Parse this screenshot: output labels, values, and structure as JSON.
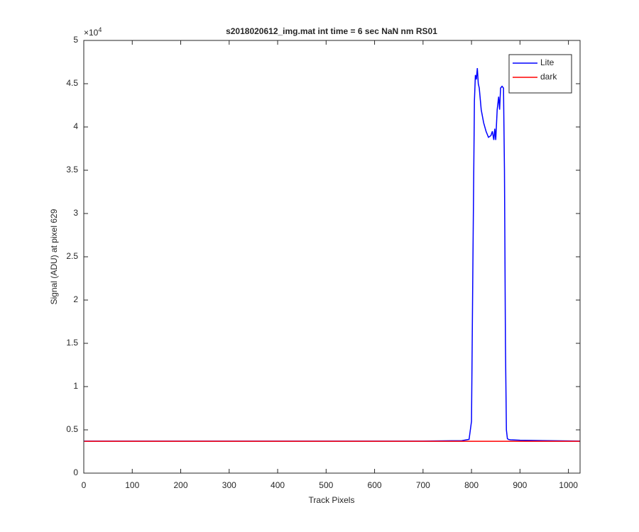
{
  "chart_data": {
    "type": "line",
    "title": "s2018020612_img.mat int time = 6 sec  NaN nm RS01",
    "x_label": "Track Pixels",
    "y_label": "Signal (ADU) at pixel 629",
    "y_multiplier": {
      "base": "×10",
      "exponent": "4"
    },
    "x": [
      1,
      100,
      200,
      300,
      400,
      500,
      600,
      700,
      780,
      795,
      800,
      803,
      806,
      808,
      810,
      812,
      814,
      816,
      820,
      825,
      830,
      835,
      840,
      843,
      846,
      848,
      850,
      853,
      856,
      858,
      860,
      863,
      866,
      868,
      870,
      872,
      874,
      876,
      880,
      900,
      1000,
      1024
    ],
    "series": [
      {
        "name": "Lite",
        "color": "#0000ff",
        "values": [
          0.37,
          0.37,
          0.37,
          0.37,
          0.37,
          0.37,
          0.37,
          0.37,
          0.375,
          0.39,
          0.6,
          2.5,
          4.3,
          4.6,
          4.55,
          4.68,
          4.5,
          4.45,
          4.2,
          4.05,
          3.95,
          3.88,
          3.9,
          3.95,
          3.85,
          3.98,
          3.85,
          4.2,
          4.35,
          4.2,
          4.45,
          4.47,
          4.45,
          3.5,
          1.5,
          0.5,
          0.4,
          0.39,
          0.385,
          0.38,
          0.372,
          0.37
        ]
      },
      {
        "name": "dark",
        "color": "#ff0000",
        "values": [
          0.368,
          0.368,
          0.368,
          0.368,
          0.368,
          0.368,
          0.368,
          0.368,
          0.368,
          0.368,
          0.368,
          0.368,
          0.368,
          0.368,
          0.368,
          0.368,
          0.368,
          0.368,
          0.368,
          0.368,
          0.368,
          0.368,
          0.368,
          0.368,
          0.368,
          0.368,
          0.368,
          0.368,
          0.368,
          0.368,
          0.368,
          0.368,
          0.368,
          0.368,
          0.368,
          0.368,
          0.368,
          0.368,
          0.368,
          0.368,
          0.368,
          0.368
        ]
      }
    ],
    "xlim": [
      0,
      1024
    ],
    "ylim": [
      0,
      5
    ],
    "xticks": [
      0,
      100,
      200,
      300,
      400,
      500,
      600,
      700,
      800,
      900,
      1000
    ],
    "yticks": [
      0,
      0.5,
      1,
      1.5,
      2,
      2.5,
      3,
      3.5,
      4,
      4.5,
      5
    ],
    "grid": false,
    "legend": "top-right"
  }
}
